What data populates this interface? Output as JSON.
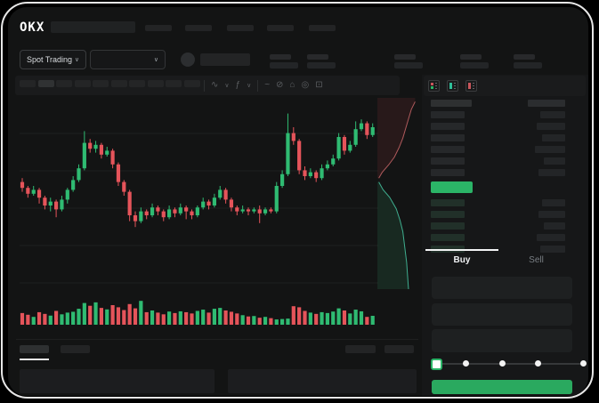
{
  "brand": {
    "logo_text": "OKX"
  },
  "market_selector": {
    "label": "Spot Trading",
    "chevron": "∨"
  },
  "pair_dropdown": {
    "chevron": "∨"
  },
  "toolbar": {
    "icons": [
      {
        "type": "divider"
      },
      {
        "name": "candle-style-icon",
        "glyph": "∿"
      },
      {
        "name": "chevron-down-icon",
        "glyph": "∨",
        "small": true
      },
      {
        "name": "indicators-icon",
        "glyph": "ƒ"
      },
      {
        "name": "chevron-down-icon",
        "glyph": "∨",
        "small": true
      },
      {
        "type": "divider"
      },
      {
        "name": "line-tool-icon",
        "glyph": "~"
      },
      {
        "name": "draw-tool-icon",
        "glyph": "⊘"
      },
      {
        "name": "snapshot-icon",
        "glyph": "⌂"
      },
      {
        "name": "chart-settings-icon",
        "glyph": "◎"
      },
      {
        "name": "fullscreen-icon",
        "glyph": "⊡"
      }
    ]
  },
  "order_book": {
    "view_icons": [
      "orderbook-split-icon",
      "orderbook-bids-icon",
      "orderbook-asks-icon"
    ],
    "ask_rows": [
      {
        "l": 46,
        "r": 42
      },
      {
        "l": 38,
        "r": 28
      },
      {
        "l": 38,
        "r": 32
      },
      {
        "l": 38,
        "r": 26
      },
      {
        "l": 38,
        "r": 34
      },
      {
        "l": 38,
        "r": 24
      },
      {
        "l": 38,
        "r": 30
      }
    ],
    "spread_bar": {
      "width": 47
    },
    "bid_rows": [
      {
        "l": 38,
        "r": 26
      },
      {
        "l": 38,
        "r": 30
      },
      {
        "l": 38,
        "r": 24
      },
      {
        "l": 38,
        "r": 32
      },
      {
        "l": 38,
        "r": 28
      }
    ]
  },
  "trade_panel": {
    "tabs": [
      {
        "label": "Buy",
        "active": true
      },
      {
        "label": "Sell",
        "active": false
      }
    ],
    "field_count": 3,
    "slider": {
      "stops": [
        0,
        25,
        50,
        75,
        100
      ],
      "active_stop": 0
    },
    "submit_label": ""
  },
  "colors": {
    "up": "#2fbb72",
    "down": "#e5545a",
    "spread": "#2bb467",
    "button_green": "#2aa95f",
    "tab_active_text": "#eef0f2",
    "tab_inactive_text": "#787d82",
    "depth_ask_line": "#b05a5c",
    "depth_bid_line": "#3fae8f"
  },
  "chart_data": {
    "type": "candlestick",
    "title": "",
    "note": "Stylized trading mockup; no axis tick labels are visible in the screenshot",
    "price_scale": [
      0,
      100
    ],
    "grid": true,
    "candles": [
      [
        57,
        59,
        52,
        54
      ],
      [
        54,
        55,
        49,
        51
      ],
      [
        51,
        55,
        50,
        53
      ],
      [
        53,
        54,
        46,
        49
      ],
      [
        49,
        50,
        43,
        45
      ],
      [
        45,
        49,
        42,
        47
      ],
      [
        47,
        48,
        39,
        43
      ],
      [
        43,
        50,
        42,
        48
      ],
      [
        48,
        54,
        46,
        53
      ],
      [
        53,
        60,
        52,
        58
      ],
      [
        58,
        66,
        57,
        64
      ],
      [
        64,
        83,
        63,
        77
      ],
      [
        77,
        79,
        72,
        74
      ],
      [
        74,
        78,
        72,
        76
      ],
      [
        76,
        77,
        69,
        71
      ],
      [
        71,
        75,
        70,
        73
      ],
      [
        73,
        74,
        64,
        66
      ],
      [
        66,
        67,
        55,
        57
      ],
      [
        57,
        58,
        50,
        52
      ],
      [
        52,
        53,
        37,
        40
      ],
      [
        40,
        42,
        34,
        37
      ],
      [
        37,
        44,
        36,
        42
      ],
      [
        42,
        43,
        38,
        40
      ],
      [
        40,
        46,
        39,
        44
      ],
      [
        44,
        45,
        40,
        42
      ],
      [
        42,
        43,
        37,
        39
      ],
      [
        39,
        45,
        38,
        43
      ],
      [
        43,
        44,
        39,
        41
      ],
      [
        41,
        46,
        40,
        44
      ],
      [
        44,
        45,
        38,
        42
      ],
      [
        42,
        43,
        38,
        40
      ],
      [
        40,
        45,
        39,
        44
      ],
      [
        44,
        49,
        43,
        47
      ],
      [
        47,
        48,
        43,
        45
      ],
      [
        45,
        51,
        44,
        49
      ],
      [
        49,
        55,
        48,
        53
      ],
      [
        53,
        54,
        46,
        48
      ],
      [
        48,
        49,
        42,
        44
      ],
      [
        44,
        45,
        40,
        42
      ],
      [
        42,
        45,
        41,
        43
      ],
      [
        43,
        44,
        40,
        42
      ],
      [
        42,
        44,
        41,
        43
      ],
      [
        43,
        45,
        36,
        41
      ],
      [
        41,
        44,
        40,
        43
      ],
      [
        43,
        44,
        41,
        42
      ],
      [
        42,
        57,
        41,
        55
      ],
      [
        55,
        63,
        54,
        61
      ],
      [
        61,
        92,
        60,
        82
      ],
      [
        82,
        85,
        76,
        78
      ],
      [
        78,
        79,
        61,
        63
      ],
      [
        63,
        65,
        58,
        60
      ],
      [
        60,
        64,
        59,
        62
      ],
      [
        62,
        63,
        57,
        59
      ],
      [
        59,
        66,
        58,
        64
      ],
      [
        64,
        68,
        63,
        66
      ],
      [
        66,
        71,
        65,
        69
      ],
      [
        69,
        82,
        68,
        80
      ],
      [
        80,
        81,
        71,
        73
      ],
      [
        73,
        78,
        72,
        76
      ],
      [
        76,
        88,
        75,
        84
      ],
      [
        84,
        89,
        83,
        87
      ],
      [
        87,
        88,
        79,
        81
      ],
      [
        81,
        87,
        80,
        85
      ]
    ],
    "volume": [
      38,
      30,
      20,
      42,
      34,
      26,
      48,
      32,
      40,
      44,
      58,
      85,
      72,
      88,
      62,
      55,
      75,
      65,
      52,
      80,
      60,
      95,
      42,
      50,
      40,
      32,
      45,
      38,
      46,
      42,
      36,
      48,
      54,
      40,
      58,
      62,
      50,
      44,
      36,
      28,
      22,
      24,
      16,
      20,
      14,
      8,
      10,
      12,
      70,
      65,
      48,
      40,
      34,
      42,
      38,
      45,
      60,
      50,
      36,
      54,
      46,
      20,
      25
    ],
    "depth": {
      "orientation": "vertical",
      "ask_line": [
        [
          80,
          2
        ],
        [
          72,
          6
        ],
        [
          66,
          11
        ],
        [
          60,
          16
        ],
        [
          54,
          21
        ],
        [
          46,
          26
        ],
        [
          36,
          31
        ],
        [
          24,
          35
        ],
        [
          10,
          39
        ],
        [
          3,
          42
        ]
      ],
      "bid_line": [
        [
          3,
          44
        ],
        [
          12,
          48
        ],
        [
          26,
          52
        ],
        [
          40,
          58
        ],
        [
          48,
          64
        ],
        [
          54,
          70
        ],
        [
          58,
          78
        ],
        [
          62,
          86
        ],
        [
          64,
          93
        ],
        [
          66,
          100
        ]
      ]
    }
  }
}
